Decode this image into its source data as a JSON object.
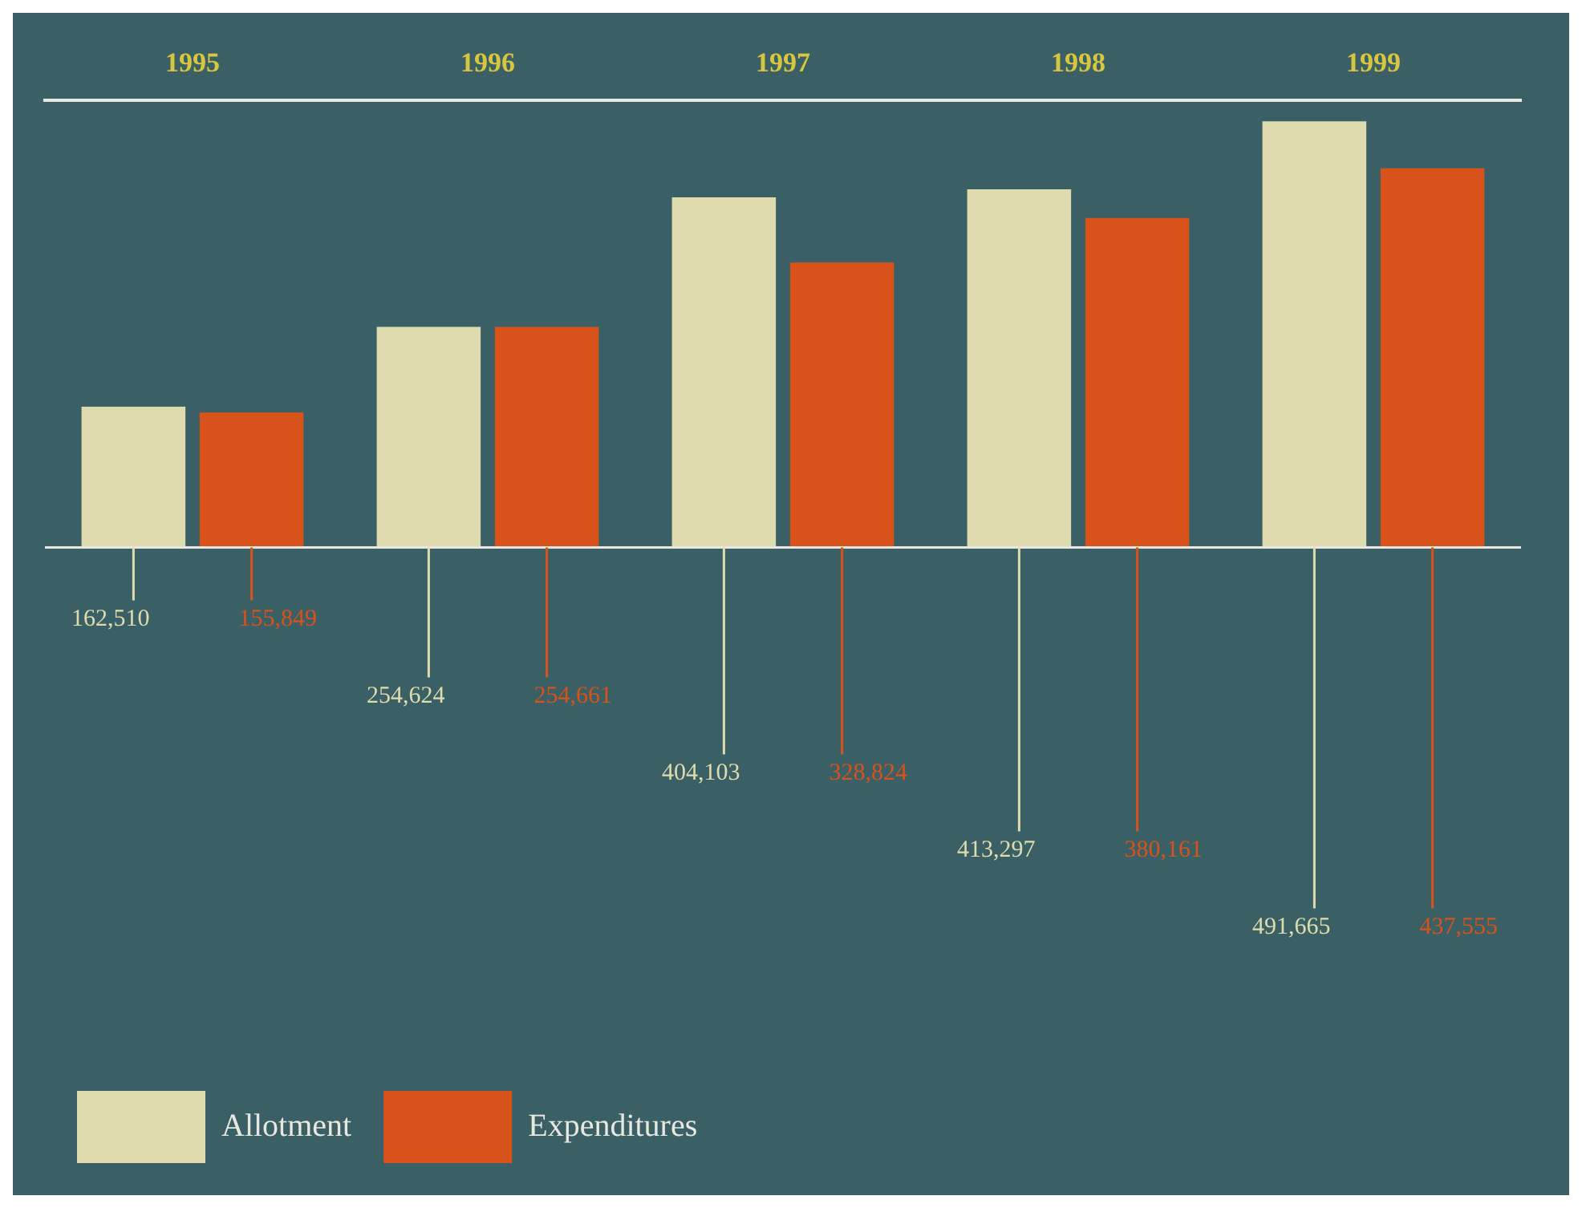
{
  "chart_data": {
    "type": "bar",
    "categories": [
      "1995",
      "1996",
      "1997",
      "1998",
      "1999"
    ],
    "series": [
      {
        "name": "Allotment",
        "color": "#dedcae",
        "values": [
          162510,
          254624,
          404103,
          413297,
          491665
        ],
        "value_labels": [
          "162,510",
          "254,624",
          "404,103",
          "413,297",
          "491,665"
        ]
      },
      {
        "name": "Expenditures",
        "color": "#d8521c",
        "values": [
          155849,
          254661,
          328824,
          380161,
          437555
        ],
        "value_labels": [
          "155,849",
          "254,661",
          "328,824",
          "380,161",
          "437,555"
        ]
      }
    ],
    "legend": "bottom left",
    "grid": false
  }
}
